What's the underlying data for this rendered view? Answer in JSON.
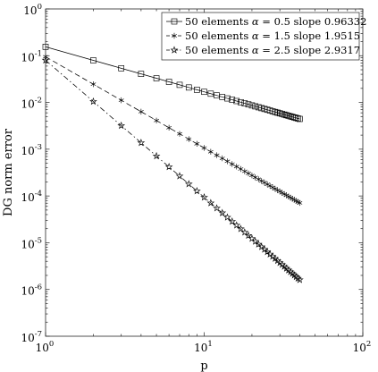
{
  "chart_data": {
    "type": "line",
    "xlabel": "p",
    "ylabel": "DG norm error",
    "xscale": "log",
    "yscale": "log",
    "xlim": [
      1,
      100
    ],
    "ylim": [
      1e-07,
      1
    ],
    "x_ticks": [
      1,
      10,
      100
    ],
    "x_tick_labels": [
      {
        "base": "10",
        "exp": "0"
      },
      {
        "base": "10",
        "exp": "1"
      },
      {
        "base": "10",
        "exp": "2"
      }
    ],
    "y_ticks": [
      1e-07,
      1e-06,
      1e-05,
      0.0001,
      0.001,
      0.01,
      0.1,
      1
    ],
    "y_tick_labels": [
      {
        "base": "10",
        "exp": "-7"
      },
      {
        "base": "10",
        "exp": "-6"
      },
      {
        "base": "10",
        "exp": "-5"
      },
      {
        "base": "10",
        "exp": "-4"
      },
      {
        "base": "10",
        "exp": "-3"
      },
      {
        "base": "10",
        "exp": "-2"
      },
      {
        "base": "10",
        "exp": "-1"
      },
      {
        "base": "10",
        "exp": "0"
      }
    ],
    "grid": false,
    "legend_position": "top-right",
    "x": [
      1,
      2,
      3,
      4,
      5,
      6,
      7,
      8,
      9,
      10,
      11,
      12,
      13,
      14,
      15,
      16,
      17,
      18,
      19,
      20,
      21,
      22,
      23,
      24,
      25,
      26,
      27,
      28,
      29,
      30,
      31,
      32,
      33,
      34,
      35,
      36,
      37,
      38,
      39,
      40
    ],
    "series": [
      {
        "legend": {
          "prefix": "50 elements ",
          "symbol": "α",
          "suffix": " = 0.5 slope 0.96332"
        },
        "marker": "square",
        "line_style": "solid",
        "first_value": 0.155,
        "slope": 0.96332,
        "color": "#000000"
      },
      {
        "legend": {
          "prefix": "50 elements ",
          "symbol": "α",
          "suffix": " = 1.5 slope 1.9515"
        },
        "marker": "asterisk",
        "line_style": "dashed",
        "first_value": 0.095,
        "slope": 1.9515,
        "color": "#000000"
      },
      {
        "legend": {
          "prefix": "50 elements ",
          "symbol": "α",
          "suffix": " = 2.5 slope 2.9317"
        },
        "marker": "pentagram",
        "line_style": "dash-dot",
        "first_value": 0.08,
        "slope": 2.9317,
        "color": "#000000"
      }
    ]
  }
}
